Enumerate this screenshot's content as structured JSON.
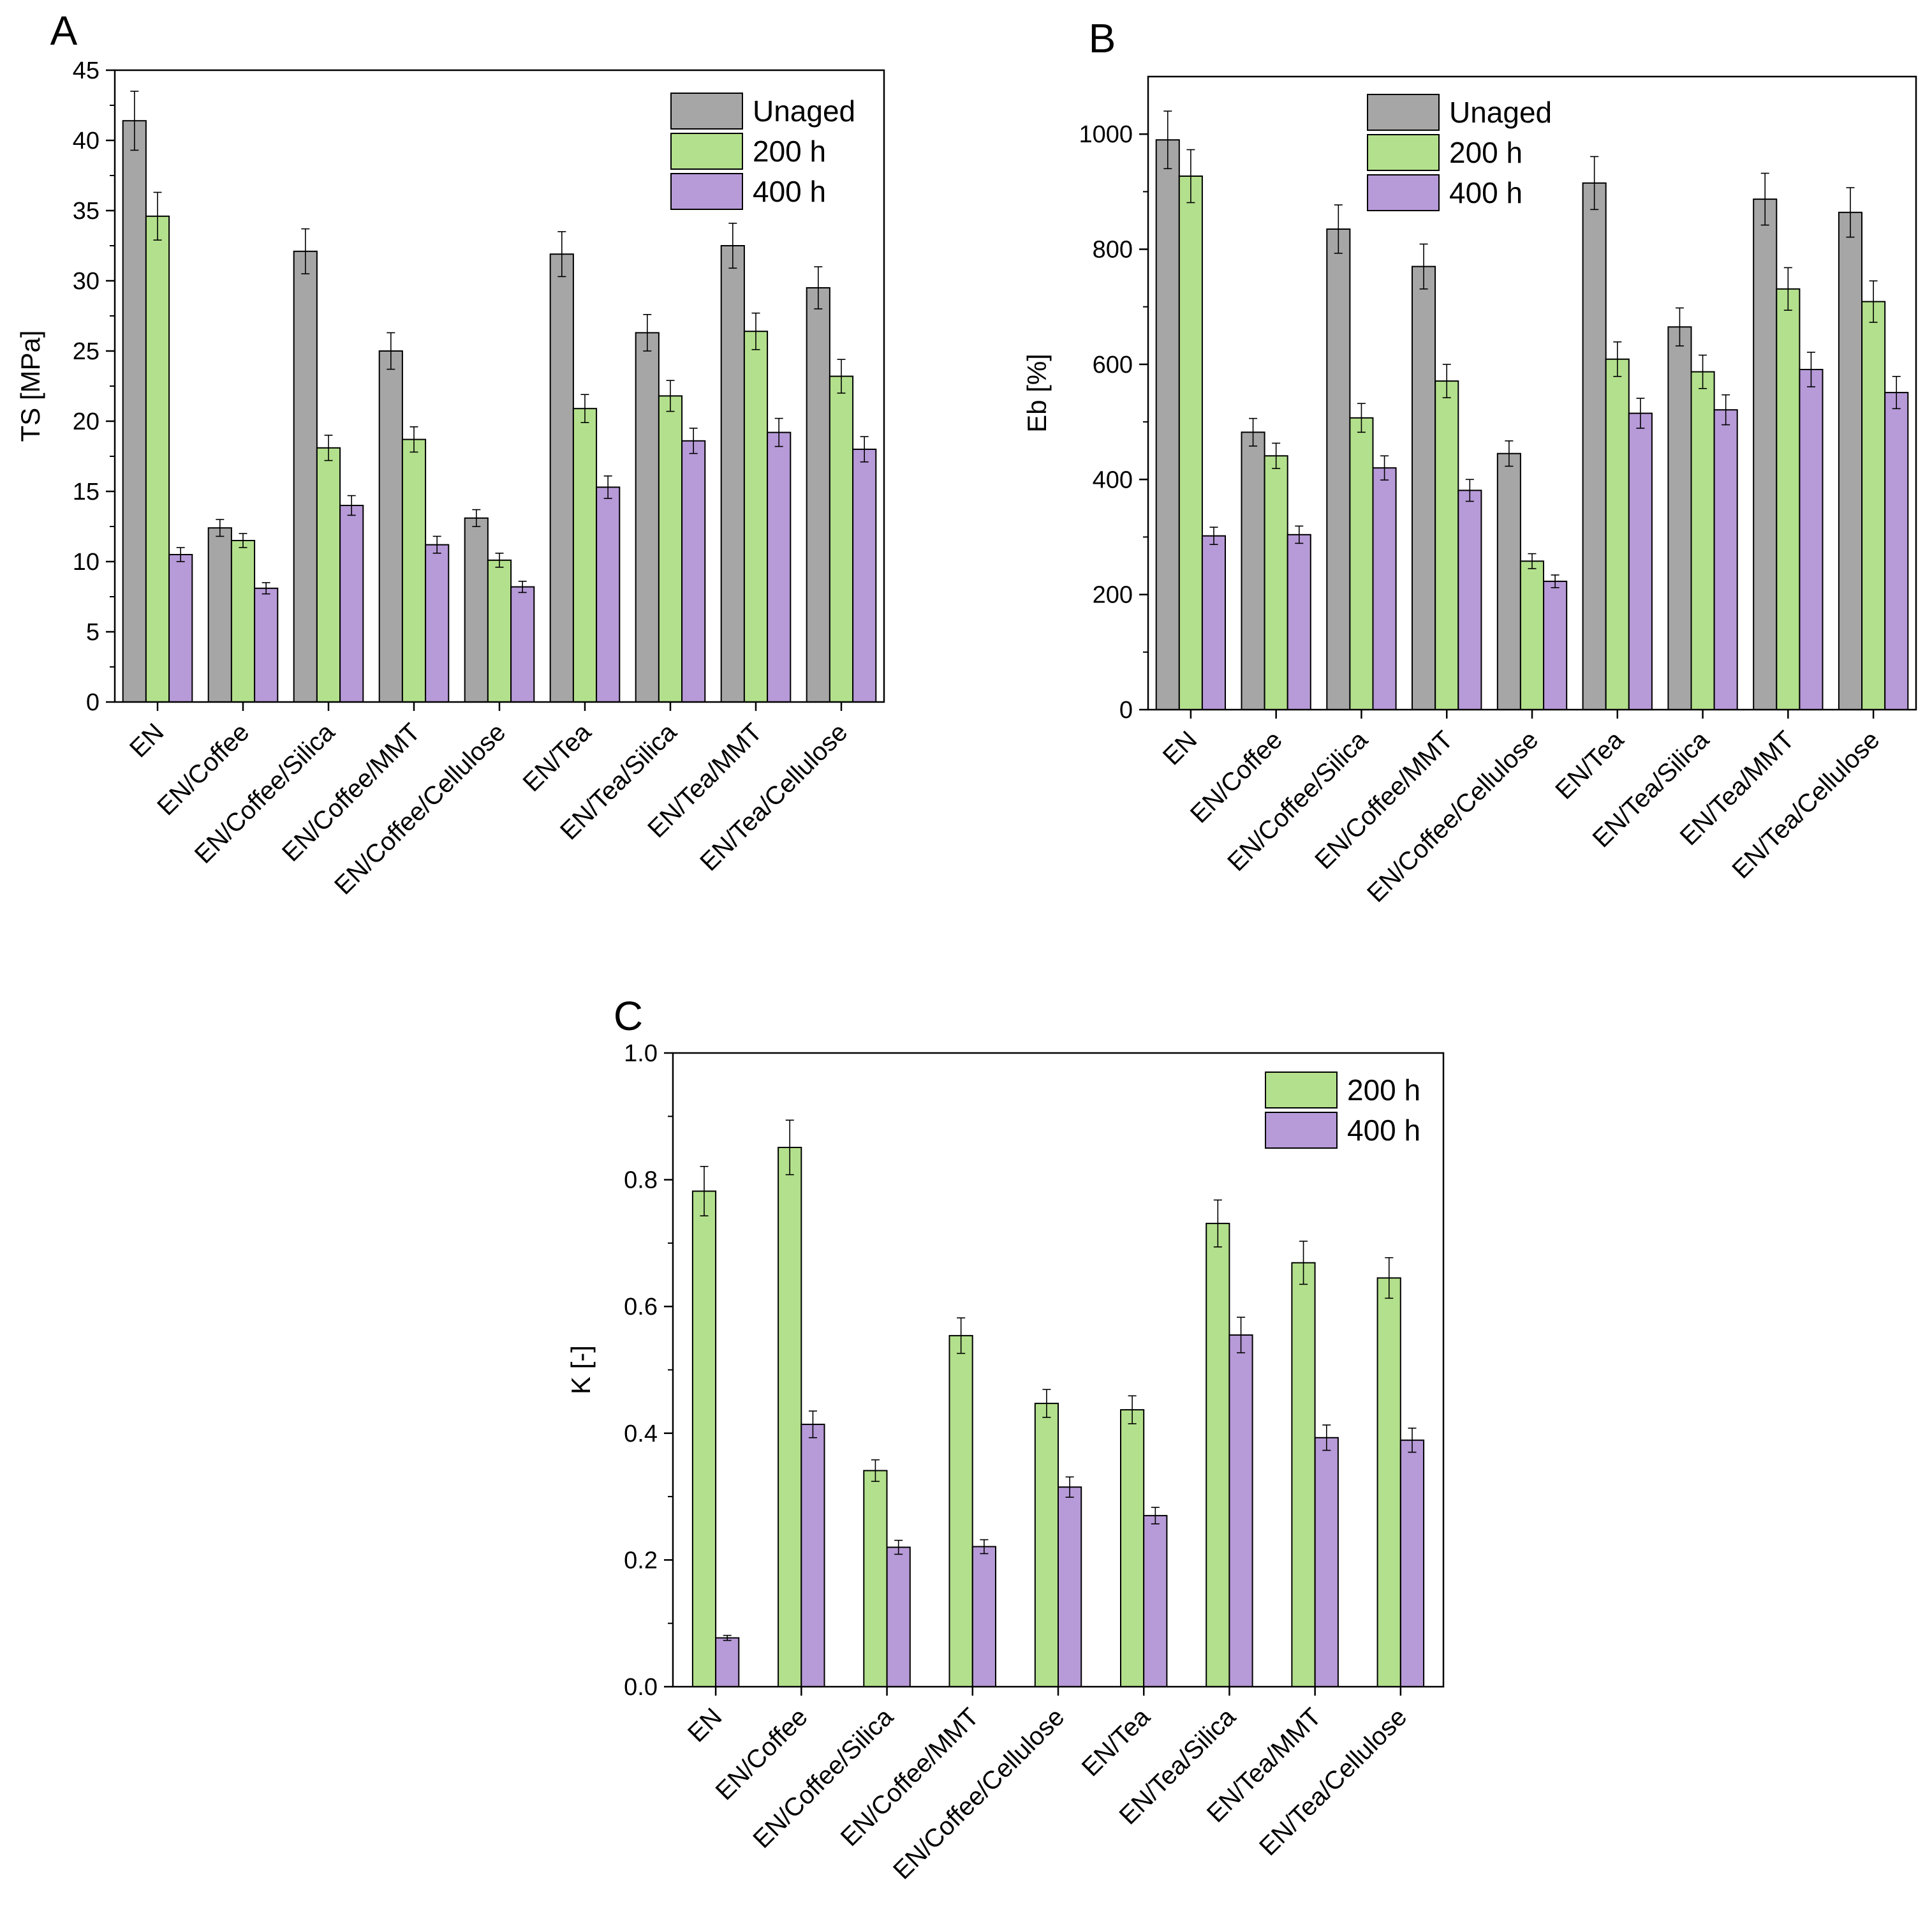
{
  "colors": {
    "Unaged": "#a6a6a6",
    "200 h": "#b3e08c",
    "400 h": "#b79ad8",
    "axis": "#000000"
  },
  "chart_data": [
    {
      "panel": "A",
      "type": "bar",
      "ylabel": "TS [MPa]",
      "ylim": [
        0,
        45
      ],
      "yticks": [
        0,
        5,
        10,
        15,
        20,
        25,
        30,
        35,
        40,
        45
      ],
      "legend": "top-right",
      "categories": [
        "EN",
        "EN/Coffee",
        "EN/Coffee/Silica",
        "EN/Coffee/MMT",
        "EN/Coffee/Cellulose",
        "EN/Tea",
        "EN/Tea/Silica",
        "EN/Tea/MMT",
        "EN/Tea/Cellulose"
      ],
      "series": [
        {
          "name": "Unaged",
          "values": [
            41.4,
            12.4,
            32.1,
            25.0,
            13.1,
            31.9,
            26.3,
            32.5,
            29.5
          ],
          "errors": [
            2.1,
            0.6,
            1.6,
            1.3,
            0.6,
            1.6,
            1.3,
            1.6,
            1.5
          ]
        },
        {
          "name": "200 h",
          "values": [
            34.6,
            11.5,
            18.1,
            18.7,
            10.1,
            20.9,
            21.8,
            26.4,
            23.2
          ],
          "errors": [
            1.7,
            0.5,
            0.9,
            0.9,
            0.5,
            1.0,
            1.1,
            1.3,
            1.2
          ]
        },
        {
          "name": "400 h",
          "values": [
            10.5,
            8.1,
            14.0,
            11.2,
            8.2,
            15.3,
            18.6,
            19.2,
            18.0
          ],
          "errors": [
            0.5,
            0.4,
            0.7,
            0.6,
            0.4,
            0.8,
            0.9,
            1.0,
            0.9
          ]
        }
      ]
    },
    {
      "panel": "B",
      "type": "bar",
      "ylabel": "Eb [%]",
      "ylim": [
        0,
        1100
      ],
      "yticks": [
        0,
        200,
        400,
        600,
        800,
        1000
      ],
      "legend": "top-center",
      "categories": [
        "EN",
        "EN/Coffee",
        "EN/Coffee/Silica",
        "EN/Coffee/MMT",
        "EN/Coffee/Cellulose",
        "EN/Tea",
        "EN/Tea/Silica",
        "EN/Tea/MMT",
        "EN/Tea/Cellulose"
      ],
      "series": [
        {
          "name": "Unaged",
          "values": [
            990,
            482,
            835,
            770,
            445,
            915,
            665,
            887,
            864
          ],
          "errors": [
            50,
            24,
            42,
            39,
            22,
            46,
            33,
            45,
            43
          ]
        },
        {
          "name": "200 h",
          "values": [
            927,
            441,
            507,
            571,
            258,
            609,
            587,
            731,
            709
          ],
          "errors": [
            46,
            22,
            25,
            29,
            13,
            30,
            29,
            37,
            36
          ]
        },
        {
          "name": "400 h",
          "values": [
            302,
            304,
            420,
            381,
            223,
            515,
            521,
            591,
            551
          ],
          "errors": [
            15,
            15,
            21,
            19,
            11,
            26,
            26,
            30,
            28
          ]
        }
      ]
    },
    {
      "panel": "C",
      "type": "bar",
      "ylabel": "K [-]",
      "ylim": [
        0,
        1.0
      ],
      "yticks": [
        "0.0",
        "0.2",
        "0.4",
        "0.6",
        "0.8",
        "1.0"
      ],
      "legend": "top-right",
      "categories": [
        "EN",
        "EN/Coffee",
        "EN/Coffee/Silica",
        "EN/Coffee/MMT",
        "EN/Coffee/Cellulose",
        "EN/Tea",
        "EN/Tea/Silica",
        "EN/Tea/MMT",
        "EN/Tea/Cellulose"
      ],
      "series": [
        {
          "name": "200 h",
          "values": [
            0.782,
            0.851,
            0.341,
            0.554,
            0.447,
            0.437,
            0.731,
            0.669,
            0.645
          ],
          "errors": [
            0.039,
            0.043,
            0.017,
            0.028,
            0.022,
            0.022,
            0.037,
            0.034,
            0.032
          ]
        },
        {
          "name": "400 h",
          "values": [
            0.077,
            0.414,
            0.22,
            0.221,
            0.315,
            0.27,
            0.555,
            0.393,
            0.389
          ],
          "errors": [
            0.004,
            0.021,
            0.011,
            0.011,
            0.016,
            0.013,
            0.028,
            0.02,
            0.019
          ]
        }
      ]
    }
  ]
}
